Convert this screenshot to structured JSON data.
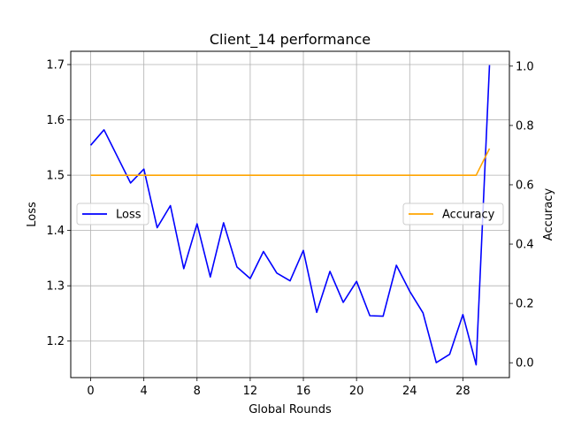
{
  "chart_data": {
    "type": "line",
    "title": "Client_14 performance",
    "xlabel": "Global Rounds",
    "ylabel_left": "Loss",
    "ylabel_right": "Accuracy",
    "xlim": [
      -1.5,
      31.5
    ],
    "ylim_left": [
      1.134,
      1.724
    ],
    "ylim_right": [
      -0.05,
      1.05
    ],
    "x_ticks": [
      0,
      4,
      8,
      12,
      16,
      20,
      24,
      28
    ],
    "y_left_ticks": [
      1.2,
      1.3,
      1.4,
      1.5,
      1.6,
      1.7
    ],
    "y_right_ticks": [
      0.0,
      0.2,
      0.4,
      0.6,
      0.8,
      1.0
    ],
    "grid": true,
    "x": [
      0,
      1,
      2,
      3,
      4,
      5,
      6,
      7,
      8,
      9,
      10,
      11,
      12,
      13,
      14,
      15,
      16,
      17,
      18,
      19,
      20,
      21,
      22,
      23,
      24,
      25,
      26,
      27,
      28,
      29,
      30
    ],
    "series": [
      {
        "name": "Loss",
        "axis": "left",
        "color": "#0000ff",
        "values": [
          1.554,
          1.582,
          1.534,
          1.486,
          1.511,
          1.405,
          1.445,
          1.331,
          1.412,
          1.316,
          1.414,
          1.334,
          1.313,
          1.362,
          1.323,
          1.309,
          1.364,
          1.252,
          1.326,
          1.27,
          1.308,
          1.246,
          1.245,
          1.337,
          1.29,
          1.251,
          1.161,
          1.176,
          1.248,
          1.157,
          1.699
        ]
      },
      {
        "name": "Accuracy",
        "axis": "right",
        "color": "#ffa500",
        "values": [
          0.632,
          0.632,
          0.632,
          0.632,
          0.632,
          0.632,
          0.632,
          0.632,
          0.632,
          0.632,
          0.632,
          0.632,
          0.632,
          0.632,
          0.632,
          0.632,
          0.632,
          0.632,
          0.632,
          0.632,
          0.632,
          0.632,
          0.632,
          0.632,
          0.632,
          0.632,
          0.632,
          0.632,
          0.632,
          0.632,
          0.722
        ]
      }
    ],
    "legends": [
      {
        "label": "Loss",
        "placement": "center-left"
      },
      {
        "label": "Accuracy",
        "placement": "center-right"
      }
    ]
  }
}
